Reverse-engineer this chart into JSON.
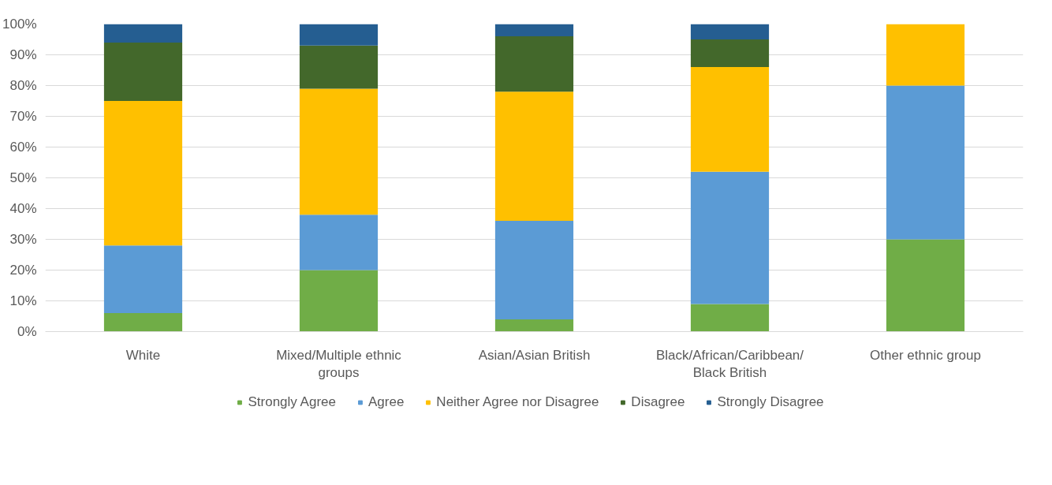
{
  "chart_data": {
    "type": "bar",
    "stacked": true,
    "categories": [
      "White",
      "Mixed/Multiple ethnic groups",
      "Asian/Asian British",
      "Black/African/Caribbean/Black British",
      "Other ethnic group"
    ],
    "series": [
      {
        "name": "Strongly Agree",
        "color": "#70ad47",
        "values": [
          6,
          20,
          4,
          9,
          30
        ]
      },
      {
        "name": "Agree",
        "color": "#5b9bd5",
        "values": [
          22,
          18,
          32,
          43,
          50
        ]
      },
      {
        "name": "Neither Agree nor Disagree",
        "color": "#ffc000",
        "values": [
          47,
          41,
          42,
          34,
          20
        ]
      },
      {
        "name": "Disagree",
        "color": "#43682b",
        "values": [
          19,
          14,
          18,
          9,
          0
        ]
      },
      {
        "name": "Strongly Disagree",
        "color": "#255e91",
        "values": [
          6,
          7,
          4,
          5,
          0
        ]
      }
    ],
    "ylim": [
      0,
      100
    ],
    "yticks": [
      {
        "value": 0,
        "label": "0%"
      },
      {
        "value": 10,
        "label": "10%"
      },
      {
        "value": 20,
        "label": "20%"
      },
      {
        "value": 30,
        "label": "30%"
      },
      {
        "value": 40,
        "label": "40%"
      },
      {
        "value": 50,
        "label": "50%"
      },
      {
        "value": 60,
        "label": "60%"
      },
      {
        "value": 70,
        "label": "70%"
      },
      {
        "value": 80,
        "label": "80%"
      },
      {
        "value": 90,
        "label": "90%"
      },
      {
        "value": 100,
        "label": "100%"
      }
    ],
    "grid": "y",
    "legend": "bottom"
  }
}
